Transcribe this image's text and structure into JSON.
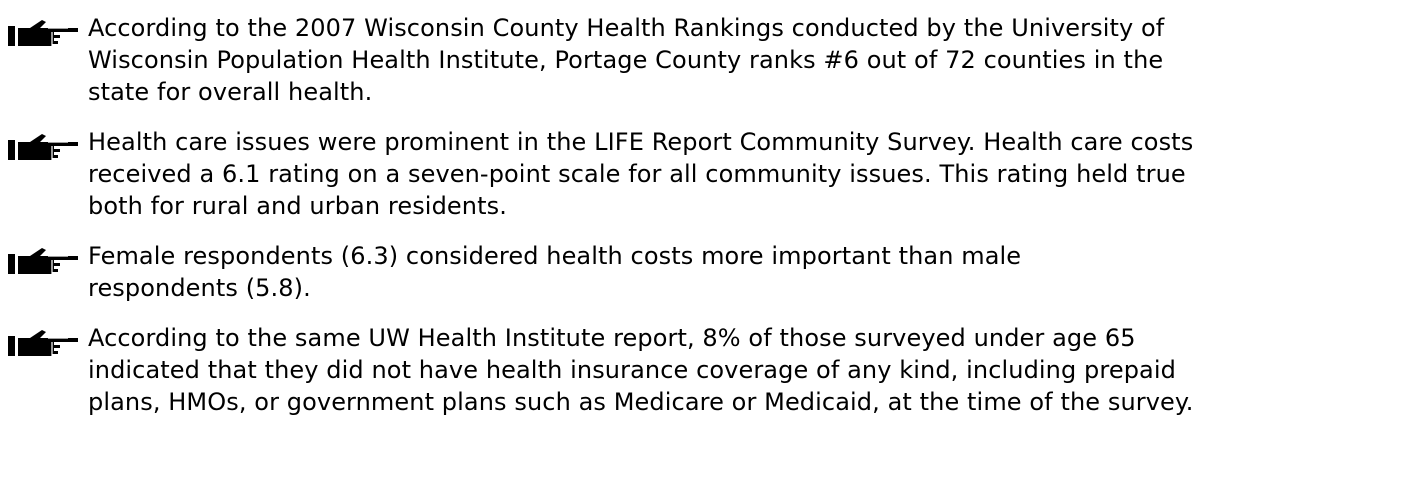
{
  "items": [
    {
      "lines": [
        "According to the 2007 Wisconsin County Health Rankings conducted by the University of",
        "Wisconsin Population Health Institute, Portage County ranks #6 out of 72 counties in the",
        "state for overall health."
      ]
    },
    {
      "lines": [
        "Health care issues were prominent in the LIFE Report Community Survey. Health care costs",
        "received a 6.1 rating on a seven-point scale for all community issues. This rating held true",
        "both for rural and urban residents."
      ]
    },
    {
      "lines": [
        "Female respondents (6.3) considered health costs more important than male",
        "respondents (5.8)."
      ]
    },
    {
      "lines": [
        "According to the same UW Health Institute report, 8% of those surveyed under age 65",
        "indicated that they did not have health insurance coverage of any kind, including prepaid",
        "plans, HMOs, or government plans such as Medicare or Medicaid, at the time of the survey."
      ]
    }
  ]
}
